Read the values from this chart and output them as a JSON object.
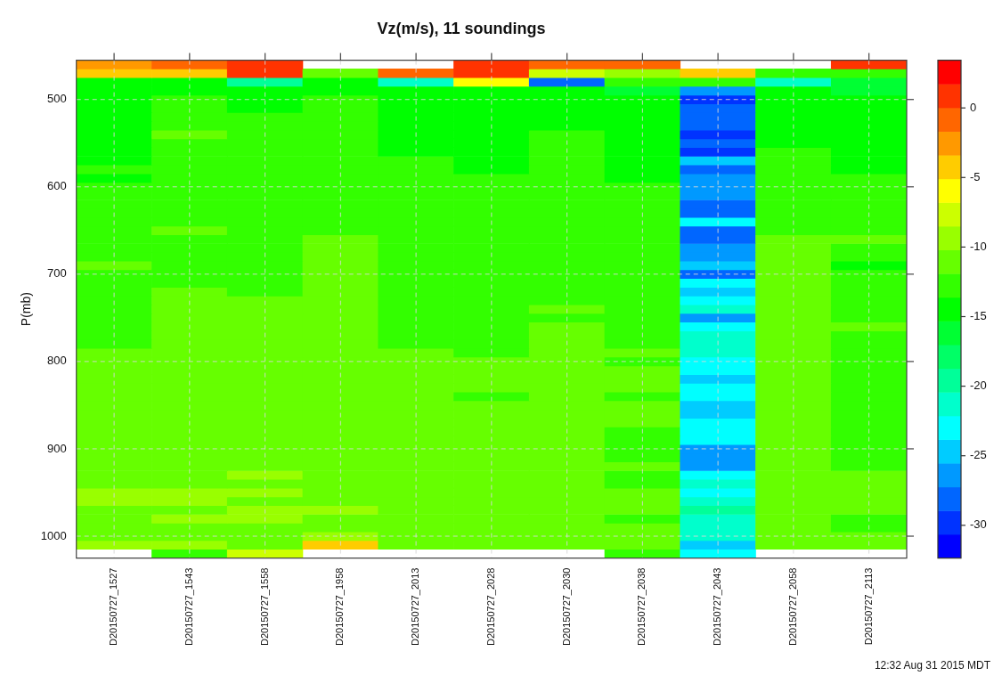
{
  "chart_data": {
    "type": "heatmap",
    "title": "Vz(m/s), 11 soundings",
    "ylabel": "P(mb)",
    "categories": [
      "D20150727_1527",
      "D20150727_1543",
      "D20150727_1558",
      "D20150727_1958",
      "D20150727_2013",
      "D20150727_2028",
      "D20150727_2030",
      "D20150727_2038",
      "D20150727_2043",
      "D20150727_2058",
      "D20150727_2113"
    ],
    "ylim": [
      1025,
      455
    ],
    "yticks": [
      500,
      600,
      700,
      800,
      900,
      1000
    ],
    "clim": [
      -32.35,
      3.43
    ],
    "cticks": [
      0,
      -5,
      -10,
      -15,
      -20,
      -25,
      -30
    ],
    "grid": true,
    "annotations": [
      "12:32 Aug 31 2015 MDT"
    ],
    "cells": [
      [
        -2.5,
        -1,
        1,
        null,
        null,
        1,
        -1,
        -1,
        null,
        null,
        1
      ],
      [
        -4,
        -4,
        1,
        -11,
        -1,
        1,
        -8,
        -9.5,
        -4,
        -13,
        -13
      ],
      [
        -14.5,
        -14.5,
        -19.5,
        -14.5,
        -21,
        -6,
        -28,
        -13,
        -13,
        -21,
        -16
      ],
      [
        -14.5,
        -14.5,
        -14.5,
        -14.5,
        -14.5,
        -14.5,
        -14.5,
        -16,
        -26.5,
        -14.5,
        -16
      ],
      [
        -14.5,
        -13,
        -14.5,
        -13,
        -14.5,
        -14.5,
        -14.5,
        -14.5,
        -30,
        -14.5,
        -14.5
      ],
      [
        -14.5,
        -13,
        -14.5,
        -13,
        -14.5,
        -14.5,
        -14.5,
        -14.5,
        -28,
        -14.5,
        -14.5
      ],
      [
        -14.5,
        -13,
        -13,
        -13,
        -14.5,
        -14.5,
        -14.5,
        -14.5,
        -28,
        -14.5,
        -14.5
      ],
      [
        -14.5,
        -13,
        -13,
        -13,
        -14.5,
        -14.5,
        -14.5,
        -14.5,
        -28,
        -14.5,
        -14.5
      ],
      [
        -14.5,
        -11,
        -13,
        -13,
        -14.5,
        -14.5,
        -13,
        -14.5,
        -30,
        -14.5,
        -14.5
      ],
      [
        -14.5,
        -13,
        -13,
        -13,
        -14.5,
        -14.5,
        -13,
        -14.5,
        -28,
        -14.5,
        -14.5
      ],
      [
        -14.5,
        -13,
        -13,
        -13,
        -14.5,
        -14.5,
        -13,
        -14.5,
        -30,
        -13,
        -14.5
      ],
      [
        -14.5,
        -13,
        -13,
        -13,
        -13,
        -14.5,
        -13,
        -14.5,
        -24.5,
        -13,
        -14.5
      ],
      [
        -13,
        -13,
        -13,
        -13,
        -13,
        -14.5,
        -13,
        -14.5,
        -28,
        -13,
        -14.5
      ],
      [
        -14.5,
        -13,
        -13,
        -13,
        -13,
        -13,
        -13,
        -14.5,
        -26.5,
        -13,
        -13
      ],
      [
        -13,
        -13,
        -13,
        -13,
        -13,
        -13,
        -13,
        -13,
        -26.5,
        -13,
        -13
      ],
      [
        -13,
        -13,
        -13,
        -13,
        -13,
        -13,
        -13,
        -13,
        -26.5,
        -13,
        -13
      ],
      [
        -13,
        -13,
        -13,
        -13,
        -13,
        -13,
        -13,
        -13,
        -28,
        -13,
        -13
      ],
      [
        -13,
        -13,
        -13,
        -13,
        -13,
        -13,
        -13,
        -13,
        -28,
        -13,
        -13
      ],
      [
        -13,
        -13,
        -13,
        -13,
        -13,
        -13,
        -13,
        -13,
        -23,
        -13,
        -13
      ],
      [
        -13,
        -11,
        -13,
        -13,
        -13,
        -13,
        -13,
        -13,
        -28,
        -13,
        -13
      ],
      [
        -13,
        -13,
        -13,
        -11,
        -13,
        -13,
        -13,
        -13,
        -28,
        -11,
        -11
      ],
      [
        -13,
        -13,
        -13,
        -11,
        -13,
        -13,
        -13,
        -13,
        -26.5,
        -11,
        -13
      ],
      [
        -13,
        -13,
        -13,
        -11,
        -13,
        -13,
        -13,
        -13,
        -26.5,
        -11,
        -13
      ],
      [
        -11,
        -13,
        -13,
        -11,
        -13,
        -13,
        -13,
        -13,
        -24.5,
        -11,
        -14.5
      ],
      [
        -13,
        -13,
        -13,
        -11,
        -13,
        -13,
        -13,
        -13,
        -28,
        -11,
        -13
      ],
      [
        -13,
        -13,
        -13,
        -11,
        -13,
        -13,
        -13,
        -13,
        -23,
        -11,
        -13
      ],
      [
        -13,
        -11,
        -13,
        -11,
        -13,
        -13,
        -13,
        -13,
        -24.5,
        -11,
        -13
      ],
      [
        -13,
        -11,
        -11,
        -11,
        -13,
        -13,
        -13,
        -13,
        -23,
        -11,
        -13
      ],
      [
        -13,
        -11,
        -11,
        -11,
        -13,
        -13,
        -11,
        -13,
        -21,
        -11,
        -13
      ],
      [
        -13,
        -11,
        -11,
        -11,
        -13,
        -13,
        -13,
        -13,
        -26.5,
        -11,
        -13
      ],
      [
        -13,
        -11,
        -11,
        -11,
        -13,
        -13,
        -11,
        -13,
        -23,
        -11,
        -11
      ],
      [
        -13,
        -11,
        -11,
        -11,
        -13,
        -13,
        -11,
        -13,
        -21,
        -11,
        -13
      ],
      [
        -13,
        -11,
        -11,
        -11,
        -13,
        -13,
        -11,
        -13,
        -21,
        -11,
        -13
      ],
      [
        -11,
        -11,
        -11,
        -11,
        -11,
        -13,
        -11,
        -11,
        -21,
        -11,
        -13
      ],
      [
        -11,
        -11,
        -11,
        -11,
        -11,
        -11,
        -11,
        -13,
        -23,
        -11,
        -13
      ],
      [
        -11,
        -11,
        -11,
        -11,
        -11,
        -11,
        -11,
        -11,
        -23,
        -11,
        -13
      ],
      [
        -11,
        -11,
        -11,
        -11,
        -11,
        -11,
        -11,
        -11,
        -24.5,
        -11,
        -13
      ],
      [
        -11,
        -11,
        -11,
        -11,
        -11,
        -11,
        -11,
        -11,
        -23,
        -11,
        -13
      ],
      [
        -11,
        -11,
        -11,
        -11,
        -11,
        -13,
        -11,
        -13,
        -23,
        -11,
        -13
      ],
      [
        -11,
        -11,
        -11,
        -11,
        -11,
        -11,
        -11,
        -11,
        -24.5,
        -11,
        -13
      ],
      [
        -11,
        -11,
        -11,
        -11,
        -11,
        -11,
        -11,
        -11,
        -24.5,
        -11,
        -13
      ],
      [
        -11,
        -11,
        -11,
        -11,
        -11,
        -11,
        -11,
        -11,
        -23,
        -11,
        -13
      ],
      [
        -11,
        -11,
        -11,
        -11,
        -11,
        -11,
        -11,
        -13,
        -23,
        -11,
        -13
      ],
      [
        -11,
        -11,
        -11,
        -11,
        -11,
        -11,
        -11,
        -13,
        -23,
        -11,
        -13
      ],
      [
        -11,
        -11,
        -11,
        -11,
        -11,
        -11,
        -11,
        -13,
        -26.5,
        -11,
        -13
      ],
      [
        -11,
        -11,
        -11,
        -11,
        -11,
        -11,
        -11,
        -13,
        -26.5,
        -11,
        -13
      ],
      [
        -11,
        -11,
        -11,
        -11,
        -11,
        -11,
        -11,
        -11,
        -26.5,
        -11,
        -13
      ],
      [
        -11,
        -11,
        -9.5,
        -11,
        -11,
        -11,
        -11,
        -13,
        -23,
        -11,
        -11
      ],
      [
        -11,
        -11,
        -11,
        -11,
        -11,
        -11,
        -11,
        -13,
        -21,
        -11,
        -11
      ],
      [
        -9.5,
        -9.5,
        -9.5,
        -11,
        -11,
        -11,
        -11,
        -11,
        -23,
        -11,
        -11
      ],
      [
        -9.5,
        -9.5,
        -11,
        -11,
        -11,
        -11,
        -11,
        -11,
        -21,
        -11,
        -11
      ],
      [
        -11,
        -11,
        -9.5,
        -9.5,
        -11,
        -11,
        -11,
        -11,
        -19.5,
        -11,
        -11
      ],
      [
        -11,
        -9.5,
        -9.5,
        -11,
        -11,
        -11,
        -11,
        -13,
        -21,
        -11,
        -13
      ],
      [
        -11,
        -11,
        -11,
        -11,
        -11,
        -11,
        -11,
        -11,
        -21,
        -11,
        -13
      ],
      [
        -11,
        -11,
        -11,
        -9.5,
        -11,
        -11,
        -11,
        -11,
        -21,
        -11,
        -11
      ],
      [
        -9.5,
        -9.5,
        -11,
        -4,
        -11,
        -11,
        -11,
        -11,
        -24.5,
        -11,
        -11
      ],
      [
        null,
        -13,
        -8,
        null,
        null,
        null,
        null,
        -13,
        -23,
        null,
        null
      ]
    ]
  }
}
